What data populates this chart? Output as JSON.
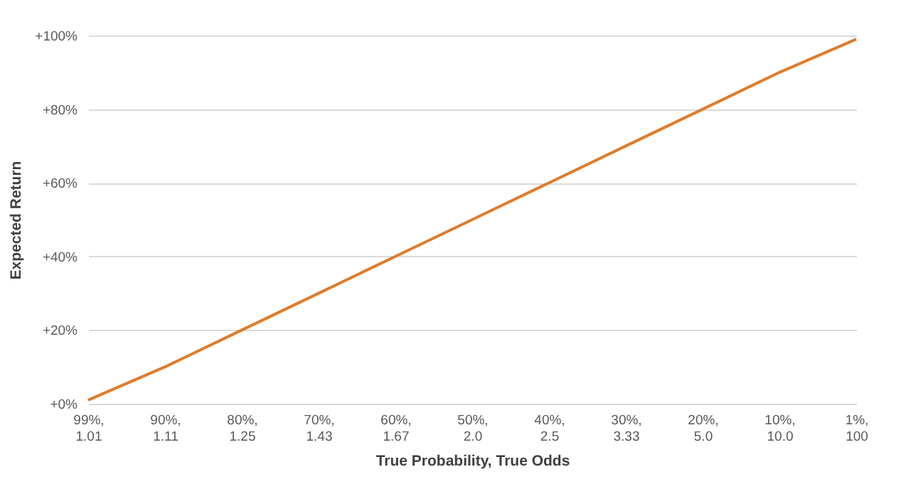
{
  "chart_data": {
    "type": "line",
    "xlabel": "True Probability, True Odds",
    "ylabel": "Expected Return",
    "categories": [
      "99%, 1.01",
      "90%, 1.11",
      "80%, 1.25",
      "70%, 1.43",
      "60%, 1.67",
      "50%, 2.0",
      "40%, 2.5",
      "30%, 3.33",
      "20%, 5.0",
      "10%, 10.0",
      "1%, 100"
    ],
    "series": [
      {
        "color": "#e07b2a",
        "values": [
          1,
          10,
          20,
          30,
          40,
          50,
          60,
          70,
          80,
          90,
          99
        ]
      }
    ],
    "ylim": [
      0,
      100
    ],
    "yticks": [
      {
        "value": 0,
        "label": "+0%"
      },
      {
        "value": 20,
        "label": "+20%"
      },
      {
        "value": 40,
        "label": "+40%"
      },
      {
        "value": 60,
        "label": "+60%"
      },
      {
        "value": 80,
        "label": "+80%"
      },
      {
        "value": 100,
        "label": "+100%"
      }
    ],
    "grid": "y",
    "marker": "none",
    "line_style": "solid"
  }
}
